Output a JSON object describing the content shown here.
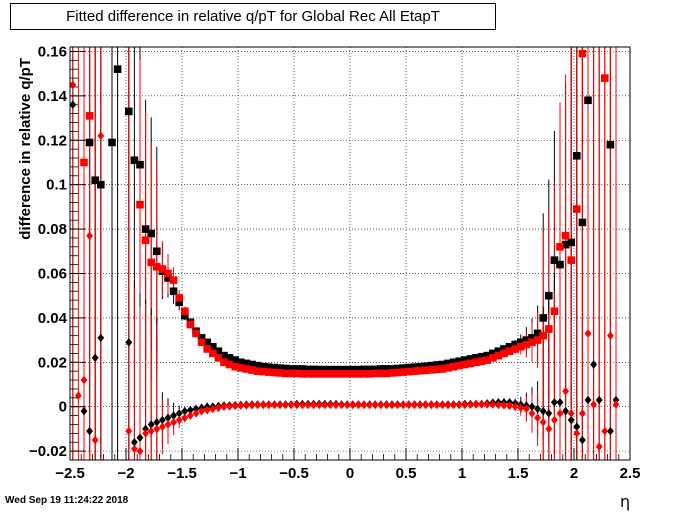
{
  "title": "Fitted difference in relative q/pT for Global Rec All EtapT",
  "footer": "Wed Sep 19 11:24:22 2018",
  "chart_data": {
    "type": "scatter",
    "xlabel": "η",
    "ylabel": "difference in relative q/pT",
    "xlim": [
      -2.5,
      2.5
    ],
    "ylim": [
      -0.024,
      0.162
    ],
    "x_ticks": [
      -2.5,
      -2,
      -1.5,
      -1,
      -0.5,
      0,
      0.5,
      1,
      1.5,
      2,
      2.5
    ],
    "x_tick_labels": [
      "−2.5",
      "−2",
      "−1.5",
      "−1",
      "−0.5",
      "0",
      "0.5",
      "1",
      "1.5",
      "2",
      "2.5"
    ],
    "y_ticks": [
      -0.02,
      0,
      0.02,
      0.04,
      0.06,
      0.08,
      0.1,
      0.12,
      0.14,
      0.16
    ],
    "y_tick_labels": [
      "−0.02",
      "0",
      "0.02",
      "0.04",
      "0.06",
      "0.08",
      "0.1",
      "0.12",
      "0.14",
      "0.16"
    ],
    "grid": true,
    "series": [
      {
        "marker": "square",
        "color": "#000000",
        "x": [
          -2.475,
          -2.425,
          -2.375,
          -2.325,
          -2.275,
          -2.225,
          -2.175,
          -2.125,
          -2.075,
          -2.025,
          -1.975,
          -1.925,
          -1.875,
          -1.825,
          -1.775,
          -1.725,
          -1.675,
          -1.625,
          -1.575,
          -1.525,
          -1.475,
          -1.425,
          -1.375,
          -1.325,
          -1.275,
          -1.225,
          -1.175,
          -1.125,
          -1.075,
          -1.025,
          -0.975,
          -0.925,
          -0.875,
          -0.825,
          -0.775,
          -0.725,
          -0.675,
          -0.625,
          -0.575,
          -0.525,
          -0.475,
          -0.425,
          -0.375,
          -0.325,
          -0.275,
          -0.225,
          -0.175,
          -0.125,
          -0.075,
          -0.025,
          0.025,
          0.075,
          0.125,
          0.175,
          0.225,
          0.275,
          0.325,
          0.375,
          0.425,
          0.475,
          0.525,
          0.575,
          0.625,
          0.675,
          0.725,
          0.775,
          0.825,
          0.875,
          0.925,
          0.975,
          1.025,
          1.075,
          1.125,
          1.175,
          1.225,
          1.275,
          1.325,
          1.375,
          1.425,
          1.475,
          1.525,
          1.575,
          1.625,
          1.675,
          1.725,
          1.775,
          1.825,
          1.875,
          1.925,
          1.975,
          2.025,
          2.075,
          2.125,
          2.175,
          2.225,
          2.275,
          2.325,
          2.375,
          2.425,
          2.475
        ],
        "y": [
          null,
          null,
          null,
          0.119,
          0.102,
          0.1,
          null,
          0.119,
          0.152,
          null,
          0.133,
          0.111,
          0.109,
          0.08,
          0.078,
          0.07,
          0.061,
          0.058,
          0.052,
          0.047,
          0.041,
          0.038,
          0.034,
          0.031,
          0.029,
          0.027,
          0.025,
          0.023,
          0.022,
          0.021,
          0.02,
          0.0195,
          0.019,
          0.0185,
          0.018,
          0.0178,
          0.0176,
          0.0174,
          0.0172,
          0.017,
          0.017,
          0.017,
          0.0168,
          0.0168,
          0.0167,
          0.0167,
          0.0167,
          0.0167,
          0.0167,
          0.0167,
          0.0167,
          0.0167,
          0.0168,
          0.0168,
          0.0168,
          0.017,
          0.017,
          0.017,
          0.0172,
          0.0174,
          0.0176,
          0.0178,
          0.018,
          0.0182,
          0.0185,
          0.0188,
          0.019,
          0.0195,
          0.02,
          0.0205,
          0.021,
          0.0215,
          0.022,
          0.0225,
          0.023,
          0.024,
          0.025,
          0.026,
          0.027,
          0.028,
          0.029,
          0.03,
          0.031,
          0.033,
          0.04,
          0.05,
          0.066,
          0.064,
          0.073,
          0.074,
          0.113,
          0.083,
          0.138,
          null,
          null,
          null,
          0.118,
          null,
          null,
          null
        ]
      },
      {
        "marker": "square",
        "color": "#ff0000",
        "x": [
          -2.475,
          -2.425,
          -2.375,
          -2.325,
          -2.275,
          -2.225,
          -2.175,
          -2.125,
          -2.075,
          -2.025,
          -1.975,
          -1.925,
          -1.875,
          -1.825,
          -1.775,
          -1.725,
          -1.675,
          -1.625,
          -1.575,
          -1.525,
          -1.475,
          -1.425,
          -1.375,
          -1.325,
          -1.275,
          -1.225,
          -1.175,
          -1.125,
          -1.075,
          -1.025,
          -0.975,
          -0.925,
          -0.875,
          -0.825,
          -0.775,
          -0.725,
          -0.675,
          -0.625,
          -0.575,
          -0.525,
          -0.475,
          -0.425,
          -0.375,
          -0.325,
          -0.275,
          -0.225,
          -0.175,
          -0.125,
          -0.075,
          -0.025,
          0.025,
          0.075,
          0.125,
          0.175,
          0.225,
          0.275,
          0.325,
          0.375,
          0.425,
          0.475,
          0.525,
          0.575,
          0.625,
          0.675,
          0.725,
          0.775,
          0.825,
          0.875,
          0.925,
          0.975,
          1.025,
          1.075,
          1.125,
          1.175,
          1.225,
          1.275,
          1.325,
          1.375,
          1.425,
          1.475,
          1.525,
          1.575,
          1.625,
          1.675,
          1.725,
          1.775,
          1.825,
          1.875,
          1.925,
          1.975,
          2.025,
          2.075,
          2.125,
          2.175,
          2.225,
          2.275,
          2.325,
          2.375,
          2.425,
          2.475
        ],
        "y": [
          null,
          null,
          0.11,
          0.131,
          null,
          null,
          null,
          null,
          null,
          null,
          null,
          null,
          0.091,
          0.075,
          0.065,
          0.063,
          0.062,
          0.06,
          0.057,
          0.049,
          0.043,
          0.037,
          0.033,
          0.029,
          0.026,
          0.024,
          0.022,
          0.02,
          0.019,
          0.018,
          0.0175,
          0.017,
          0.0165,
          0.016,
          0.0158,
          0.0156,
          0.0154,
          0.0152,
          0.015,
          0.015,
          0.015,
          0.0148,
          0.0148,
          0.0148,
          0.0148,
          0.0148,
          0.0148,
          0.0148,
          0.0148,
          0.0148,
          0.0148,
          0.0148,
          0.0148,
          0.0148,
          0.015,
          0.015,
          0.015,
          0.0152,
          0.0154,
          0.0156,
          0.0158,
          0.016,
          0.0162,
          0.0164,
          0.0166,
          0.0168,
          0.017,
          0.0175,
          0.018,
          0.0185,
          0.019,
          0.0195,
          0.02,
          0.0205,
          0.021,
          0.022,
          0.023,
          0.024,
          0.025,
          0.026,
          0.027,
          0.028,
          0.029,
          0.03,
          0.032,
          0.035,
          0.043,
          0.072,
          0.077,
          0.066,
          0.089,
          0.159,
          null,
          null,
          null,
          0.148,
          null,
          null,
          null,
          null
        ]
      },
      {
        "marker": "diamond",
        "color": "#000000",
        "x": [
          -2.475,
          -2.425,
          -2.375,
          -2.325,
          -2.275,
          -2.225,
          -2.175,
          -2.125,
          -2.075,
          -2.025,
          -1.975,
          -1.925,
          -1.875,
          -1.825,
          -1.775,
          -1.725,
          -1.675,
          -1.625,
          -1.575,
          -1.525,
          -1.475,
          -1.425,
          -1.375,
          -1.325,
          -1.275,
          -1.225,
          -1.175,
          -1.125,
          -1.075,
          -1.025,
          -0.975,
          -0.925,
          -0.875,
          -0.825,
          -0.775,
          -0.725,
          -0.675,
          -0.625,
          -0.575,
          -0.525,
          -0.475,
          -0.425,
          -0.375,
          -0.325,
          -0.275,
          -0.225,
          -0.175,
          -0.125,
          -0.075,
          -0.025,
          0.025,
          0.075,
          0.125,
          0.175,
          0.225,
          0.275,
          0.325,
          0.375,
          0.425,
          0.475,
          0.525,
          0.575,
          0.625,
          0.675,
          0.725,
          0.775,
          0.825,
          0.875,
          0.925,
          0.975,
          1.025,
          1.075,
          1.125,
          1.175,
          1.225,
          1.275,
          1.325,
          1.375,
          1.425,
          1.475,
          1.525,
          1.575,
          1.625,
          1.675,
          1.725,
          1.775,
          1.825,
          1.875,
          1.925,
          1.975,
          2.025,
          2.075,
          2.125,
          2.175,
          2.225,
          2.275,
          2.325,
          2.375,
          2.425,
          2.475
        ],
        "y": [
          0.136,
          null,
          -0.002,
          -0.011,
          0.022,
          0.031,
          null,
          null,
          null,
          null,
          0.029,
          -0.016,
          -0.014,
          -0.01,
          -0.008,
          -0.007,
          -0.006,
          -0.005,
          -0.004,
          -0.003,
          -0.002,
          -0.0015,
          -0.001,
          -0.0005,
          0,
          0,
          0.0003,
          0.0005,
          0.0006,
          0.0007,
          0.0008,
          0.0009,
          0.001,
          0.001,
          0.001,
          0.001,
          0.001,
          0.001,
          0.001,
          0.001,
          0.0012,
          0.0012,
          0.0012,
          0.0012,
          0.0012,
          0.0012,
          0.0012,
          0.0012,
          0.001,
          0.001,
          0.001,
          0.001,
          0.001,
          0.001,
          0.001,
          0.001,
          0.001,
          0.001,
          0.001,
          0.001,
          0.001,
          0.001,
          0.001,
          0.001,
          0.001,
          0.001,
          0.001,
          0.001,
          0.001,
          0.001,
          0.0012,
          0.0012,
          0.0012,
          0.0012,
          0.0015,
          0.0018,
          0.002,
          0.002,
          0.002,
          0.0015,
          0.001,
          0.0005,
          0,
          -0.001,
          -0.002,
          -0.003,
          0.002,
          0.002,
          -0.002,
          -0.006,
          -0.009,
          -0.015,
          0.003,
          0.019,
          0.003,
          null,
          -0.011,
          0.003,
          null,
          null
        ]
      },
      {
        "marker": "diamond",
        "color": "#ff0000",
        "x": [
          -2.475,
          -2.425,
          -2.375,
          -2.325,
          -2.275,
          -2.225,
          -2.175,
          -2.125,
          -2.075,
          -2.025,
          -1.975,
          -1.925,
          -1.875,
          -1.825,
          -1.775,
          -1.725,
          -1.675,
          -1.625,
          -1.575,
          -1.525,
          -1.475,
          -1.425,
          -1.375,
          -1.325,
          -1.275,
          -1.225,
          -1.175,
          -1.125,
          -1.075,
          -1.025,
          -0.975,
          -0.925,
          -0.875,
          -0.825,
          -0.775,
          -0.725,
          -0.675,
          -0.625,
          -0.575,
          -0.525,
          -0.475,
          -0.425,
          -0.375,
          -0.325,
          -0.275,
          -0.225,
          -0.175,
          -0.125,
          -0.075,
          -0.025,
          0.025,
          0.075,
          0.125,
          0.175,
          0.225,
          0.275,
          0.325,
          0.375,
          0.425,
          0.475,
          0.525,
          0.575,
          0.625,
          0.675,
          0.725,
          0.775,
          0.825,
          0.875,
          0.925,
          0.975,
          1.025,
          1.075,
          1.125,
          1.175,
          1.225,
          1.275,
          1.325,
          1.375,
          1.425,
          1.475,
          1.525,
          1.575,
          1.625,
          1.675,
          1.725,
          1.775,
          1.825,
          1.875,
          1.925,
          1.975,
          2.025,
          2.075,
          2.125,
          2.175,
          2.225,
          2.275,
          2.325,
          2.375,
          2.425,
          2.475
        ],
        "y": [
          0.145,
          0.005,
          0.012,
          0.077,
          -0.015,
          0.122,
          null,
          null,
          null,
          null,
          -0.011,
          -0.019,
          -0.02,
          -0.012,
          -0.011,
          -0.01,
          -0.009,
          -0.008,
          -0.007,
          -0.006,
          -0.005,
          -0.004,
          -0.003,
          -0.002,
          -0.0015,
          -0.001,
          -0.0005,
          0,
          0.0002,
          0.0004,
          0.0005,
          0.0006,
          0.0007,
          0.0008,
          0.0008,
          0.0008,
          0.0008,
          0.0008,
          0.0008,
          0.0008,
          0.0008,
          0.0008,
          0.0008,
          0.0008,
          0.0008,
          0.0008,
          0.0008,
          0.0008,
          0.0008,
          0.0008,
          0.0008,
          0.0008,
          0.0008,
          0.0008,
          0.0008,
          0.0008,
          0.0008,
          0.0008,
          0.0008,
          0.0008,
          0.0008,
          0.0008,
          0.0008,
          0.0008,
          0.0008,
          0.0008,
          0.0008,
          0.0008,
          0.0008,
          0.0008,
          0.0008,
          0.0009,
          0.001,
          0.001,
          0.001,
          0.001,
          0.0008,
          0.0006,
          0.0004,
          0,
          -0.0005,
          -0.001,
          -0.003,
          -0.005,
          -0.007,
          -0.01,
          -0.006,
          -0.003,
          0.007,
          -0.003,
          -0.012,
          -0.003,
          0.033,
          0.001,
          -0.018,
          -0.011,
          0.032,
          0.001,
          null,
          null
        ]
      }
    ]
  }
}
